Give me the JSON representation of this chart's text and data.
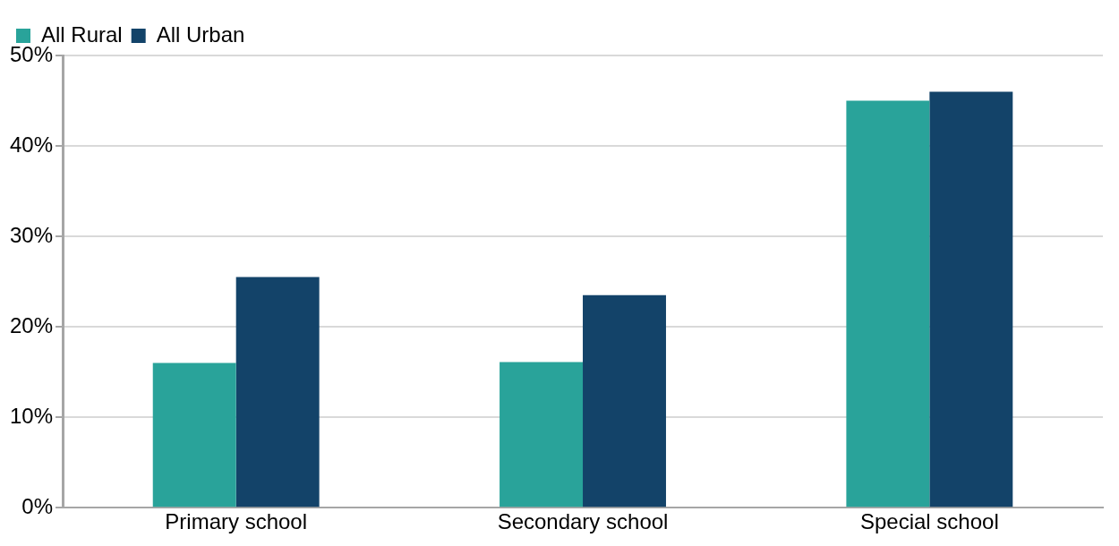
{
  "chart_data": {
    "type": "bar",
    "categories": [
      "Primary school",
      "Secondary school",
      "Special school"
    ],
    "series": [
      {
        "name": "All Rural",
        "color": "#29a39a",
        "values": [
          16,
          16.1,
          45
        ]
      },
      {
        "name": "All Urban",
        "color": "#134369",
        "values": [
          25.5,
          23.5,
          46
        ]
      }
    ],
    "ylim": [
      0,
      50
    ],
    "yticks": [
      {
        "value": 0,
        "label": "0%"
      },
      {
        "value": 10,
        "label": "10%"
      },
      {
        "value": 20,
        "label": "20%"
      },
      {
        "value": 30,
        "label": "30%"
      },
      {
        "value": 40,
        "label": "40%"
      },
      {
        "value": 50,
        "label": "50%"
      }
    ],
    "grid": "y",
    "legend": "top left"
  }
}
